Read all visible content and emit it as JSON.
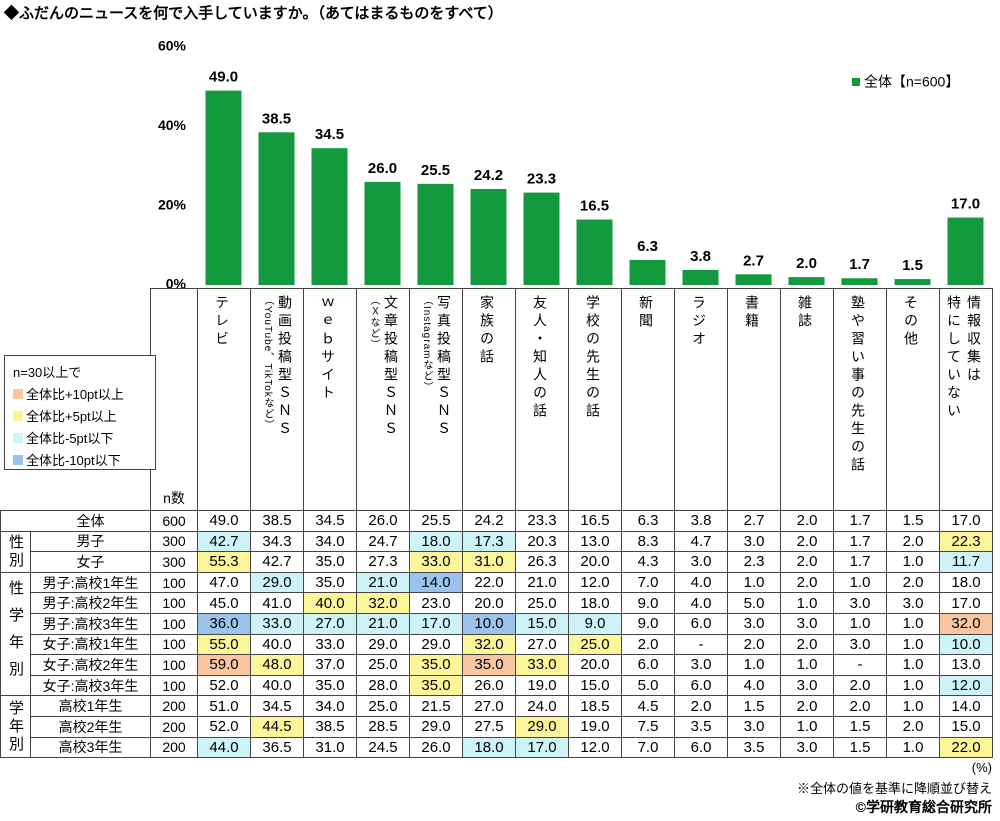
{
  "title": "◆ふだんのニュースを何で入手していますか。（あてはまるものをすべて）",
  "chart_data": {
    "type": "bar",
    "categories": [
      "テレビ",
      "動画投稿型ＳＮＳ",
      "ｗｅｂサイト",
      "文章投稿型ＳＮＳ",
      "写真投稿型ＳＮＳ",
      "家族の話",
      "友人・知人の話",
      "学校の先生の話",
      "新聞",
      "ラジオ",
      "書籍",
      "雑誌",
      "塾や習い事の先生の話",
      "その他",
      "情報収集は\n特にしていない"
    ],
    "category_notes": [
      null,
      "（YouTube、TikTokなど）",
      null,
      "（Ｘなど）",
      "（Instagramなど）",
      null,
      null,
      null,
      null,
      null,
      null,
      null,
      null,
      null,
      null
    ],
    "series_name": "全体【n=600】",
    "values": [
      49.0,
      38.5,
      34.5,
      26.0,
      25.5,
      24.2,
      23.3,
      16.5,
      6.3,
      3.8,
      2.7,
      2.0,
      1.7,
      1.5,
      17.0
    ],
    "value_labels": [
      "49.0",
      "38.5",
      "34.5",
      "26.0",
      "25.5",
      "24.2",
      "23.3",
      "16.5",
      "6.3",
      "3.8",
      "2.7",
      "2.0",
      "1.7",
      "1.5",
      "17.0"
    ],
    "color": "#149a3e",
    "ylim": [
      0,
      60
    ],
    "yticks": [
      {
        "value": 0,
        "label": "0%"
      },
      {
        "value": 20,
        "label": "20%"
      },
      {
        "value": 40,
        "label": "40%"
      },
      {
        "value": 60,
        "label": "60%"
      }
    ],
    "grid": false
  },
  "legend": {
    "title": "n=30以上で",
    "items": [
      {
        "label": "全体比+10pt以上",
        "color": "#f8c6a0"
      },
      {
        "label": "全体比+5pt以上",
        "color": "#fdf59a"
      },
      {
        "label": "全体比-5pt以下",
        "color": "#cdf3f8"
      },
      {
        "label": "全体比-10pt以下",
        "color": "#9cc3ec"
      }
    ]
  },
  "table": {
    "n_header": "n数",
    "groups": [
      {
        "label": null,
        "rows": [
          {
            "label": "全体",
            "n": 600,
            "values": [
              "49.0",
              "38.5",
              "34.5",
              "26.0",
              "25.5",
              "24.2",
              "23.3",
              "16.5",
              "6.3",
              "3.8",
              "2.7",
              "2.0",
              "1.7",
              "1.5",
              "17.0"
            ],
            "highlight": [
              null,
              null,
              null,
              null,
              null,
              null,
              null,
              null,
              null,
              null,
              null,
              null,
              null,
              null,
              null
            ]
          }
        ]
      },
      {
        "label": "性別",
        "rows": [
          {
            "label": "男子",
            "n": 300,
            "values": [
              "42.7",
              "34.3",
              "34.0",
              "24.7",
              "18.0",
              "17.3",
              "20.3",
              "13.0",
              "8.3",
              "4.7",
              "3.0",
              "2.0",
              "1.7",
              "2.0",
              "22.3"
            ],
            "highlight": [
              "#cdf3f8",
              null,
              null,
              null,
              "#cdf3f8",
              "#cdf3f8",
              null,
              null,
              null,
              null,
              null,
              null,
              null,
              null,
              "#fdf59a"
            ]
          },
          {
            "label": "女子",
            "n": 300,
            "values": [
              "55.3",
              "42.7",
              "35.0",
              "27.3",
              "33.0",
              "31.0",
              "26.3",
              "20.0",
              "4.3",
              "3.0",
              "2.3",
              "2.0",
              "1.7",
              "1.0",
              "11.7"
            ],
            "highlight": [
              "#fdf59a",
              null,
              null,
              null,
              "#fdf59a",
              "#fdf59a",
              null,
              null,
              null,
              null,
              null,
              null,
              null,
              null,
              "#cdf3f8"
            ]
          }
        ]
      },
      {
        "label": "性学年別",
        "rows": [
          {
            "label": "男子:高校1年生",
            "n": 100,
            "values": [
              "47.0",
              "29.0",
              "35.0",
              "21.0",
              "14.0",
              "22.0",
              "21.0",
              "12.0",
              "7.0",
              "4.0",
              "1.0",
              "2.0",
              "1.0",
              "2.0",
              "18.0"
            ],
            "highlight": [
              null,
              "#cdf3f8",
              null,
              "#cdf3f8",
              "#9cc3ec",
              null,
              null,
              null,
              null,
              null,
              null,
              null,
              null,
              null,
              null
            ]
          },
          {
            "label": "男子:高校2年生",
            "n": 100,
            "values": [
              "45.0",
              "41.0",
              "40.0",
              "32.0",
              "23.0",
              "20.0",
              "25.0",
              "18.0",
              "9.0",
              "4.0",
              "5.0",
              "1.0",
              "3.0",
              "3.0",
              "17.0"
            ],
            "highlight": [
              null,
              null,
              "#fdf59a",
              "#fdf59a",
              null,
              null,
              null,
              null,
              null,
              null,
              null,
              null,
              null,
              null,
              null
            ]
          },
          {
            "label": "男子:高校3年生",
            "n": 100,
            "values": [
              "36.0",
              "33.0",
              "27.0",
              "21.0",
              "17.0",
              "10.0",
              "15.0",
              "9.0",
              "9.0",
              "6.0",
              "3.0",
              "3.0",
              "1.0",
              "1.0",
              "32.0"
            ],
            "highlight": [
              "#9cc3ec",
              "#cdf3f8",
              "#cdf3f8",
              "#cdf3f8",
              "#cdf3f8",
              "#9cc3ec",
              "#cdf3f8",
              "#cdf3f8",
              null,
              null,
              null,
              null,
              null,
              null,
              "#f8c6a0"
            ]
          },
          {
            "label": "女子:高校1年生",
            "n": 100,
            "values": [
              "55.0",
              "40.0",
              "33.0",
              "29.0",
              "29.0",
              "32.0",
              "27.0",
              "25.0",
              "2.0",
              "-",
              "2.0",
              "2.0",
              "3.0",
              "1.0",
              "10.0"
            ],
            "highlight": [
              "#fdf59a",
              null,
              null,
              null,
              null,
              "#fdf59a",
              null,
              "#fdf59a",
              null,
              null,
              null,
              null,
              null,
              null,
              "#cdf3f8"
            ]
          },
          {
            "label": "女子:高校2年生",
            "n": 100,
            "values": [
              "59.0",
              "48.0",
              "37.0",
              "25.0",
              "35.0",
              "35.0",
              "33.0",
              "20.0",
              "6.0",
              "3.0",
              "1.0",
              "1.0",
              "-",
              "1.0",
              "13.0"
            ],
            "highlight": [
              "#f8c6a0",
              "#fdf59a",
              null,
              null,
              "#fdf59a",
              "#f8c6a0",
              "#fdf59a",
              null,
              null,
              null,
              null,
              null,
              null,
              null,
              null
            ]
          },
          {
            "label": "女子:高校3年生",
            "n": 100,
            "values": [
              "52.0",
              "40.0",
              "35.0",
              "28.0",
              "35.0",
              "26.0",
              "19.0",
              "15.0",
              "5.0",
              "6.0",
              "4.0",
              "3.0",
              "2.0",
              "1.0",
              "12.0"
            ],
            "highlight": [
              null,
              null,
              null,
              null,
              "#fdf59a",
              null,
              null,
              null,
              null,
              null,
              null,
              null,
              null,
              null,
              "#cdf3f8"
            ]
          }
        ]
      },
      {
        "label": "学年別",
        "rows": [
          {
            "label": "高校1年生",
            "n": 200,
            "values": [
              "51.0",
              "34.5",
              "34.0",
              "25.0",
              "21.5",
              "27.0",
              "24.0",
              "18.5",
              "4.5",
              "2.0",
              "1.5",
              "2.0",
              "2.0",
              "1.0",
              "14.0"
            ],
            "highlight": [
              null,
              null,
              null,
              null,
              null,
              null,
              null,
              null,
              null,
              null,
              null,
              null,
              null,
              null,
              null
            ]
          },
          {
            "label": "高校2年生",
            "n": 200,
            "values": [
              "52.0",
              "44.5",
              "38.5",
              "28.5",
              "29.0",
              "27.5",
              "29.0",
              "19.0",
              "7.5",
              "3.5",
              "3.0",
              "1.0",
              "1.5",
              "2.0",
              "15.0"
            ],
            "highlight": [
              null,
              "#fdf59a",
              null,
              null,
              null,
              null,
              "#fdf59a",
              null,
              null,
              null,
              null,
              null,
              null,
              null,
              null
            ]
          },
          {
            "label": "高校3年生",
            "n": 200,
            "values": [
              "44.0",
              "36.5",
              "31.0",
              "24.5",
              "26.0",
              "18.0",
              "17.0",
              "12.0",
              "7.0",
              "6.0",
              "3.5",
              "3.0",
              "1.5",
              "1.0",
              "22.0"
            ],
            "highlight": [
              "#cdf3f8",
              null,
              null,
              null,
              null,
              "#cdf3f8",
              "#cdf3f8",
              null,
              null,
              null,
              null,
              null,
              null,
              null,
              "#fdf59a"
            ]
          }
        ]
      }
    ]
  },
  "unit": "(%)",
  "note": "※全体の値を基準に降順並び替え",
  "copyright": "©学研教育総合研究所"
}
